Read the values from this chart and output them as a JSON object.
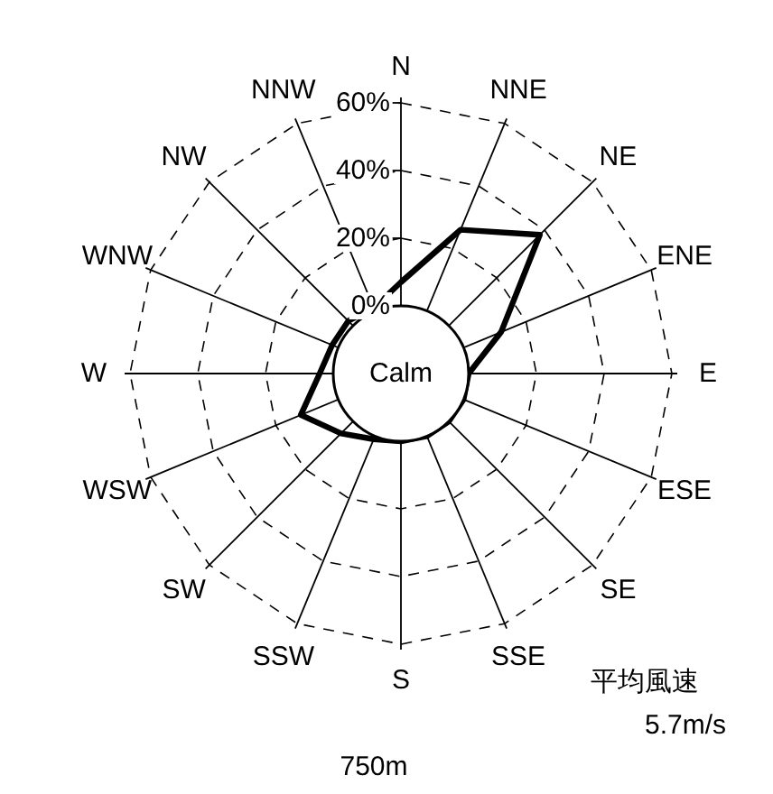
{
  "chart_data": {
    "type": "radar",
    "categories": [
      "N",
      "NNE",
      "NE",
      "ENE",
      "E",
      "ESE",
      "SE",
      "SSE",
      "S",
      "SSW",
      "SW",
      "WSW",
      "W",
      "WNW",
      "NW",
      "NNW"
    ],
    "series": [
      {
        "color": "#000000",
        "values": [
          7,
          26,
          38,
          12,
          0,
          0,
          0,
          0,
          0,
          1,
          5,
          12,
          4,
          2,
          2,
          1
        ]
      }
    ],
    "ylim": [
      -20,
      60
    ],
    "yticks": [
      {
        "value": 0,
        "label": "0%"
      },
      {
        "value": 20,
        "label": "20%"
      },
      {
        "value": 40,
        "label": "40%"
      },
      {
        "value": 60,
        "label": "60%"
      }
    ],
    "grid": true,
    "line_style": "solid",
    "marker": "none",
    "annotations": [
      "Calm",
      "平均風速",
      "5.7m/s",
      "750m"
    ]
  }
}
